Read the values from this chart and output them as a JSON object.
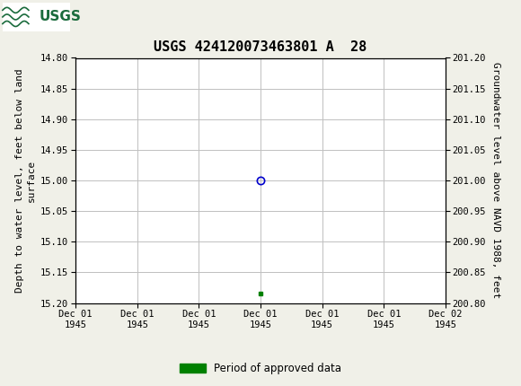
{
  "title": "USGS 424120073463801 A  28",
  "header_bg_color": "#1a6b3c",
  "ylabel_left": "Depth to water level, feet below land\nsurface",
  "ylabel_right": "Groundwater level above NAVD 1988, feet",
  "ylim_left": [
    14.8,
    15.2
  ],
  "ylim_right": [
    200.8,
    201.2
  ],
  "yticks_left": [
    14.8,
    14.85,
    14.9,
    14.95,
    15.0,
    15.05,
    15.1,
    15.15,
    15.2
  ],
  "yticks_right": [
    200.8,
    200.85,
    200.9,
    200.95,
    201.0,
    201.05,
    201.1,
    201.15,
    201.2
  ],
  "data_point_x": 3.0,
  "data_point_y": 15.0,
  "green_point_x": 3.0,
  "green_point_y": 15.185,
  "point_color": "#0000cc",
  "green_color": "#008000",
  "bg_color": "#f0f0e8",
  "plot_bg_color": "#ffffff",
  "grid_color": "#c0c0c0",
  "font_family": "DejaVu Sans Mono",
  "title_fontsize": 11,
  "axis_fontsize": 8,
  "tick_fontsize": 7.5,
  "legend_label": "Period of approved data",
  "xtick_positions": [
    0,
    1,
    2,
    3,
    4,
    5,
    6
  ],
  "xtick_labels": [
    "Dec 01\n1945",
    "Dec 01\n1945",
    "Dec 01\n1945",
    "Dec 01\n1945",
    "Dec 01\n1945",
    "Dec 01\n1945",
    "Dec 02\n1945"
  ],
  "xlim": [
    0,
    6
  ]
}
